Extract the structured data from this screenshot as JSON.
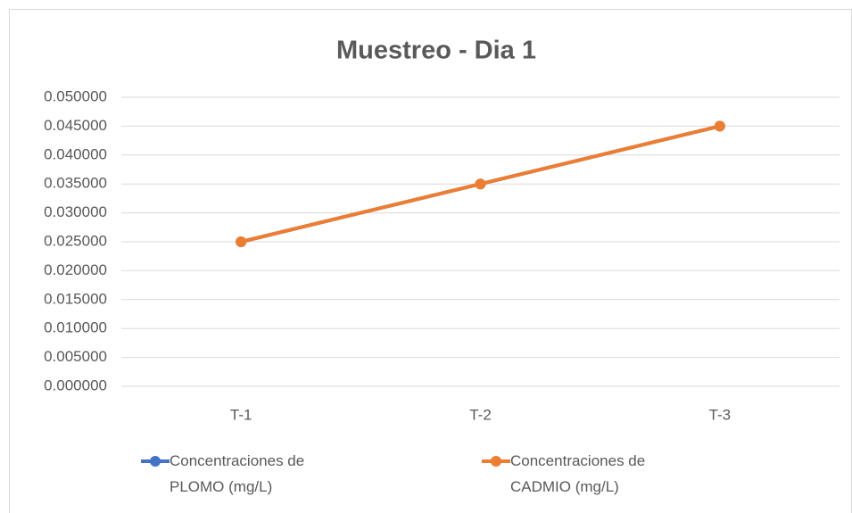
{
  "chart_data": {
    "type": "line",
    "title": "Muestreo - Dia 1",
    "categories": [
      "T-1",
      "T-2",
      "T-3"
    ],
    "series": [
      {
        "name": "Concentraciones de PLOMO (mg/L)",
        "color": "#4472c4",
        "values": [
          0.025,
          0.035,
          0.045
        ]
      },
      {
        "name": "Concentraciones de CADMIO (mg/L)",
        "color": "#ed7d31",
        "values": [
          0.025,
          0.035,
          0.045
        ]
      }
    ],
    "ylim": [
      0,
      0.05
    ],
    "yticks": [
      {
        "value": 0,
        "label": "0.000000"
      },
      {
        "value": 0.005,
        "label": "0.005000"
      },
      {
        "value": 0.01,
        "label": "0.010000"
      },
      {
        "value": 0.015,
        "label": "0.015000"
      },
      {
        "value": 0.02,
        "label": "0.020000"
      },
      {
        "value": 0.025,
        "label": "0.025000"
      },
      {
        "value": 0.03,
        "label": "0.030000"
      },
      {
        "value": 0.035,
        "label": "0.035000"
      },
      {
        "value": 0.04,
        "label": "0.040000"
      },
      {
        "value": 0.045,
        "label": "0.045000"
      },
      {
        "value": 0.05,
        "label": "0.050000"
      }
    ],
    "grid": true,
    "legend": "bottom"
  }
}
